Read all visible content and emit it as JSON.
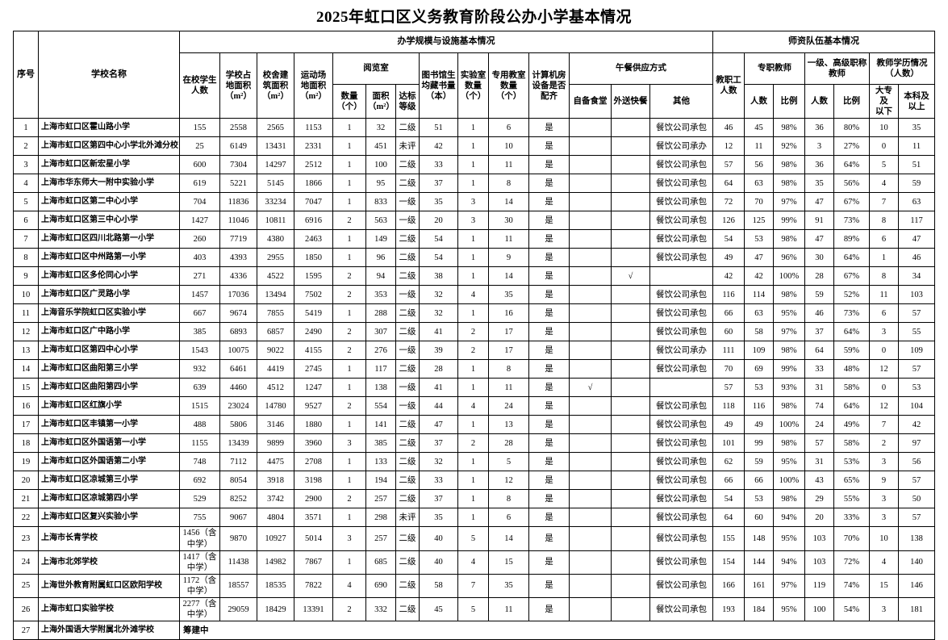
{
  "title": "2025年虹口区义务教育阶段公办小学基本情况",
  "header": {
    "xh": "序号",
    "school": "学校名称",
    "group_facilities": "办学规模与设施基本情况",
    "group_faculty": "师资队伍基本情况",
    "students": "在校学生\n人数",
    "land_area": "学校占\n地面积\n（m²）",
    "building_area": "校舍建\n筑面积\n（m²）",
    "playground_area": "运动场\n地面积\n（m²）",
    "reading_room": "阅览室",
    "rr_count": "数量\n（个）",
    "rr_area": "面积\n（m²）",
    "rr_grade": "达标\n等级",
    "library_books": "图书馆生\n均藏书量\n（本）",
    "lab_count": "实验室\n数量\n（个）",
    "special_rooms": "专用教室\n数量\n（个）",
    "computer_room": "计算机房\n设备是否\n配齐",
    "lunch": "午餐供应方式",
    "lunch_own": "自备食堂",
    "lunch_delivery": "外送快餐",
    "lunch_other": "其他",
    "staff_total": "教职工\n人数",
    "full_time": "专职教师",
    "ft_count": "人数",
    "ft_ratio": "比例",
    "senior_title": "一级、高级职称\n教师",
    "sr_count": "人数",
    "sr_ratio": "比例",
    "education": "教师学历情况\n（人数）",
    "edu_low": "大专及\n以下",
    "edu_high": "本科及\n以上"
  },
  "rows": [
    [
      "1",
      "上海市虹口区霍山路小学",
      "155",
      "2558",
      "2565",
      "1153",
      "1",
      "32",
      "二级",
      "51",
      "1",
      "6",
      "是",
      "",
      "",
      "餐饮公司承包",
      "46",
      "45",
      "98%",
      "36",
      "80%",
      "10",
      "35"
    ],
    [
      "2",
      "上海市虹口区第四中心小学北外滩分校",
      "25",
      "6149",
      "13431",
      "2331",
      "1",
      "451",
      "未评",
      "42",
      "1",
      "10",
      "是",
      "",
      "",
      "餐饮公司承办",
      "12",
      "11",
      "92%",
      "3",
      "27%",
      "0",
      "11"
    ],
    [
      "3",
      "上海市虹口区新宏星小学",
      "600",
      "7304",
      "14297",
      "2512",
      "1",
      "100",
      "二级",
      "33",
      "1",
      "11",
      "是",
      "",
      "",
      "餐饮公司承包",
      "57",
      "56",
      "98%",
      "36",
      "64%",
      "5",
      "51"
    ],
    [
      "4",
      "上海市华东师大一附中实验小学",
      "619",
      "5221",
      "5145",
      "1866",
      "1",
      "95",
      "二级",
      "37",
      "1",
      "8",
      "是",
      "",
      "",
      "餐饮公司承包",
      "64",
      "63",
      "98%",
      "35",
      "56%",
      "4",
      "59"
    ],
    [
      "5",
      "上海市虹口区第二中心小学",
      "704",
      "11836",
      "33234",
      "7047",
      "1",
      "833",
      "一级",
      "35",
      "3",
      "14",
      "是",
      "",
      "",
      "餐饮公司承包",
      "72",
      "70",
      "97%",
      "47",
      "67%",
      "7",
      "63"
    ],
    [
      "6",
      "上海市虹口区第三中心小学",
      "1427",
      "11046",
      "10811",
      "6916",
      "2",
      "563",
      "一级",
      "20",
      "3",
      "30",
      "是",
      "",
      "",
      "餐饮公司承包",
      "126",
      "125",
      "99%",
      "91",
      "73%",
      "8",
      "117"
    ],
    [
      "7",
      "上海市虹口区四川北路第一小学",
      "260",
      "7719",
      "4380",
      "2463",
      "1",
      "149",
      "二级",
      "54",
      "1",
      "11",
      "是",
      "",
      "",
      "餐饮公司承包",
      "54",
      "53",
      "98%",
      "47",
      "89%",
      "6",
      "47"
    ],
    [
      "8",
      "上海市虹口区中州路第一小学",
      "403",
      "4393",
      "2955",
      "1850",
      "1",
      "96",
      "二级",
      "54",
      "1",
      "9",
      "是",
      "",
      "",
      "餐饮公司承包",
      "49",
      "47",
      "96%",
      "30",
      "64%",
      "1",
      "46"
    ],
    [
      "9",
      "上海市虹口区多伦同心小学",
      "271",
      "4336",
      "4522",
      "1595",
      "2",
      "94",
      "二级",
      "38",
      "1",
      "14",
      "是",
      "",
      "√",
      "",
      "42",
      "42",
      "100%",
      "28",
      "67%",
      "8",
      "34"
    ],
    [
      "10",
      "上海市虹口区广灵路小学",
      "1457",
      "17036",
      "13494",
      "7502",
      "2",
      "353",
      "一级",
      "32",
      "4",
      "35",
      "是",
      "",
      "",
      "餐饮公司承包",
      "116",
      "114",
      "98%",
      "59",
      "52%",
      "11",
      "103"
    ],
    [
      "11",
      "上海音乐学院虹口区实验小学",
      "667",
      "9674",
      "7855",
      "5419",
      "1",
      "288",
      "二级",
      "32",
      "1",
      "16",
      "是",
      "",
      "",
      "餐饮公司承包",
      "66",
      "63",
      "95%",
      "46",
      "73%",
      "6",
      "57"
    ],
    [
      "12",
      "上海市虹口区广中路小学",
      "385",
      "6893",
      "6857",
      "2490",
      "2",
      "307",
      "二级",
      "41",
      "2",
      "17",
      "是",
      "",
      "",
      "餐饮公司承包",
      "60",
      "58",
      "97%",
      "37",
      "64%",
      "3",
      "55"
    ],
    [
      "13",
      "上海市虹口区第四中心小学",
      "1543",
      "10075",
      "9022",
      "4155",
      "2",
      "276",
      "一级",
      "39",
      "2",
      "17",
      "是",
      "",
      "",
      "餐饮公司承办",
      "111",
      "109",
      "98%",
      "64",
      "59%",
      "0",
      "109"
    ],
    [
      "14",
      "上海市虹口区曲阳第三小学",
      "932",
      "6461",
      "4419",
      "2745",
      "1",
      "117",
      "二级",
      "28",
      "1",
      "8",
      "是",
      "",
      "",
      "餐饮公司承包",
      "70",
      "69",
      "99%",
      "33",
      "48%",
      "12",
      "57"
    ],
    [
      "15",
      "上海市虹口区曲阳第四小学",
      "639",
      "4460",
      "4512",
      "1247",
      "1",
      "138",
      "一级",
      "41",
      "1",
      "11",
      "是",
      "√",
      "",
      "",
      "57",
      "53",
      "93%",
      "31",
      "58%",
      "0",
      "53"
    ],
    [
      "16",
      "上海市虹口区红旗小学",
      "1515",
      "23024",
      "14780",
      "9527",
      "2",
      "554",
      "一级",
      "44",
      "4",
      "24",
      "是",
      "",
      "",
      "餐饮公司承包",
      "118",
      "116",
      "98%",
      "74",
      "64%",
      "12",
      "104"
    ],
    [
      "17",
      "上海市虹口区丰镇第一小学",
      "488",
      "5806",
      "3146",
      "1880",
      "1",
      "141",
      "二级",
      "47",
      "1",
      "13",
      "是",
      "",
      "",
      "餐饮公司承包",
      "49",
      "49",
      "100%",
      "24",
      "49%",
      "7",
      "42"
    ],
    [
      "18",
      "上海市虹口区外国语第一小学",
      "1155",
      "13439",
      "9899",
      "3960",
      "3",
      "385",
      "二级",
      "37",
      "2",
      "28",
      "是",
      "",
      "",
      "餐饮公司承包",
      "101",
      "99",
      "98%",
      "57",
      "58%",
      "2",
      "97"
    ],
    [
      "19",
      "上海市虹口区外国语第二小学",
      "748",
      "7112",
      "4475",
      "2708",
      "1",
      "133",
      "二级",
      "32",
      "1",
      "5",
      "是",
      "",
      "",
      "餐饮公司承包",
      "62",
      "59",
      "95%",
      "31",
      "53%",
      "3",
      "56"
    ],
    [
      "20",
      "上海市虹口区凉城第三小学",
      "692",
      "8054",
      "3918",
      "3198",
      "1",
      "194",
      "二级",
      "33",
      "1",
      "12",
      "是",
      "",
      "",
      "餐饮公司承包",
      "66",
      "66",
      "100%",
      "43",
      "65%",
      "9",
      "57"
    ],
    [
      "21",
      "上海市虹口区凉城第四小学",
      "529",
      "8252",
      "3742",
      "2900",
      "2",
      "257",
      "二级",
      "37",
      "1",
      "8",
      "是",
      "",
      "",
      "餐饮公司承包",
      "54",
      "53",
      "98%",
      "29",
      "55%",
      "3",
      "50"
    ],
    [
      "22",
      "上海市虹口区复兴实验小学",
      "755",
      "9067",
      "4804",
      "3571",
      "1",
      "298",
      "未评",
      "35",
      "1",
      "6",
      "是",
      "",
      "",
      "餐饮公司承包",
      "64",
      "60",
      "94%",
      "20",
      "33%",
      "3",
      "57"
    ],
    [
      "23",
      "上海市长青学校",
      "1456（含中学）",
      "9870",
      "10927",
      "5014",
      "3",
      "257",
      "二级",
      "40",
      "5",
      "14",
      "是",
      "",
      "",
      "餐饮公司承包",
      "155",
      "148",
      "95%",
      "103",
      "70%",
      "10",
      "138"
    ],
    [
      "24",
      "上海市北郊学校",
      "1417（含中学）",
      "11438",
      "14982",
      "7867",
      "1",
      "685",
      "二级",
      "40",
      "4",
      "15",
      "是",
      "",
      "",
      "餐饮公司承包",
      "154",
      "144",
      "94%",
      "103",
      "72%",
      "4",
      "140"
    ],
    [
      "25",
      "上海世外教育附属虹口区欧阳学校",
      "1172（含中学）",
      "18557",
      "18535",
      "7822",
      "4",
      "690",
      "二级",
      "58",
      "7",
      "35",
      "是",
      "",
      "",
      "餐饮公司承包",
      "166",
      "161",
      "97%",
      "119",
      "74%",
      "15",
      "146"
    ],
    [
      "26",
      "上海市虹口实验学校",
      "2277（含中学）",
      "29059",
      "18429",
      "13391",
      "2",
      "332",
      "二级",
      "45",
      "5",
      "11",
      "是",
      "",
      "",
      "餐饮公司承包",
      "193",
      "184",
      "95%",
      "100",
      "54%",
      "3",
      "181"
    ],
    [
      "27",
      "上海外国语大学附属北外滩学校",
      "筹建中"
    ]
  ]
}
